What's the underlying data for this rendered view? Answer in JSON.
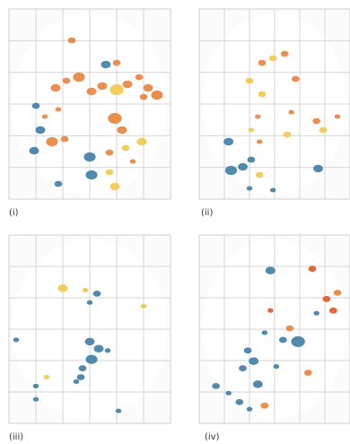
{
  "panels": [
    {
      "label": "(i)"
    },
    {
      "label": "(ii)"
    },
    {
      "label": "(iii)"
    },
    {
      "label": "(iv)"
    }
  ]
}
